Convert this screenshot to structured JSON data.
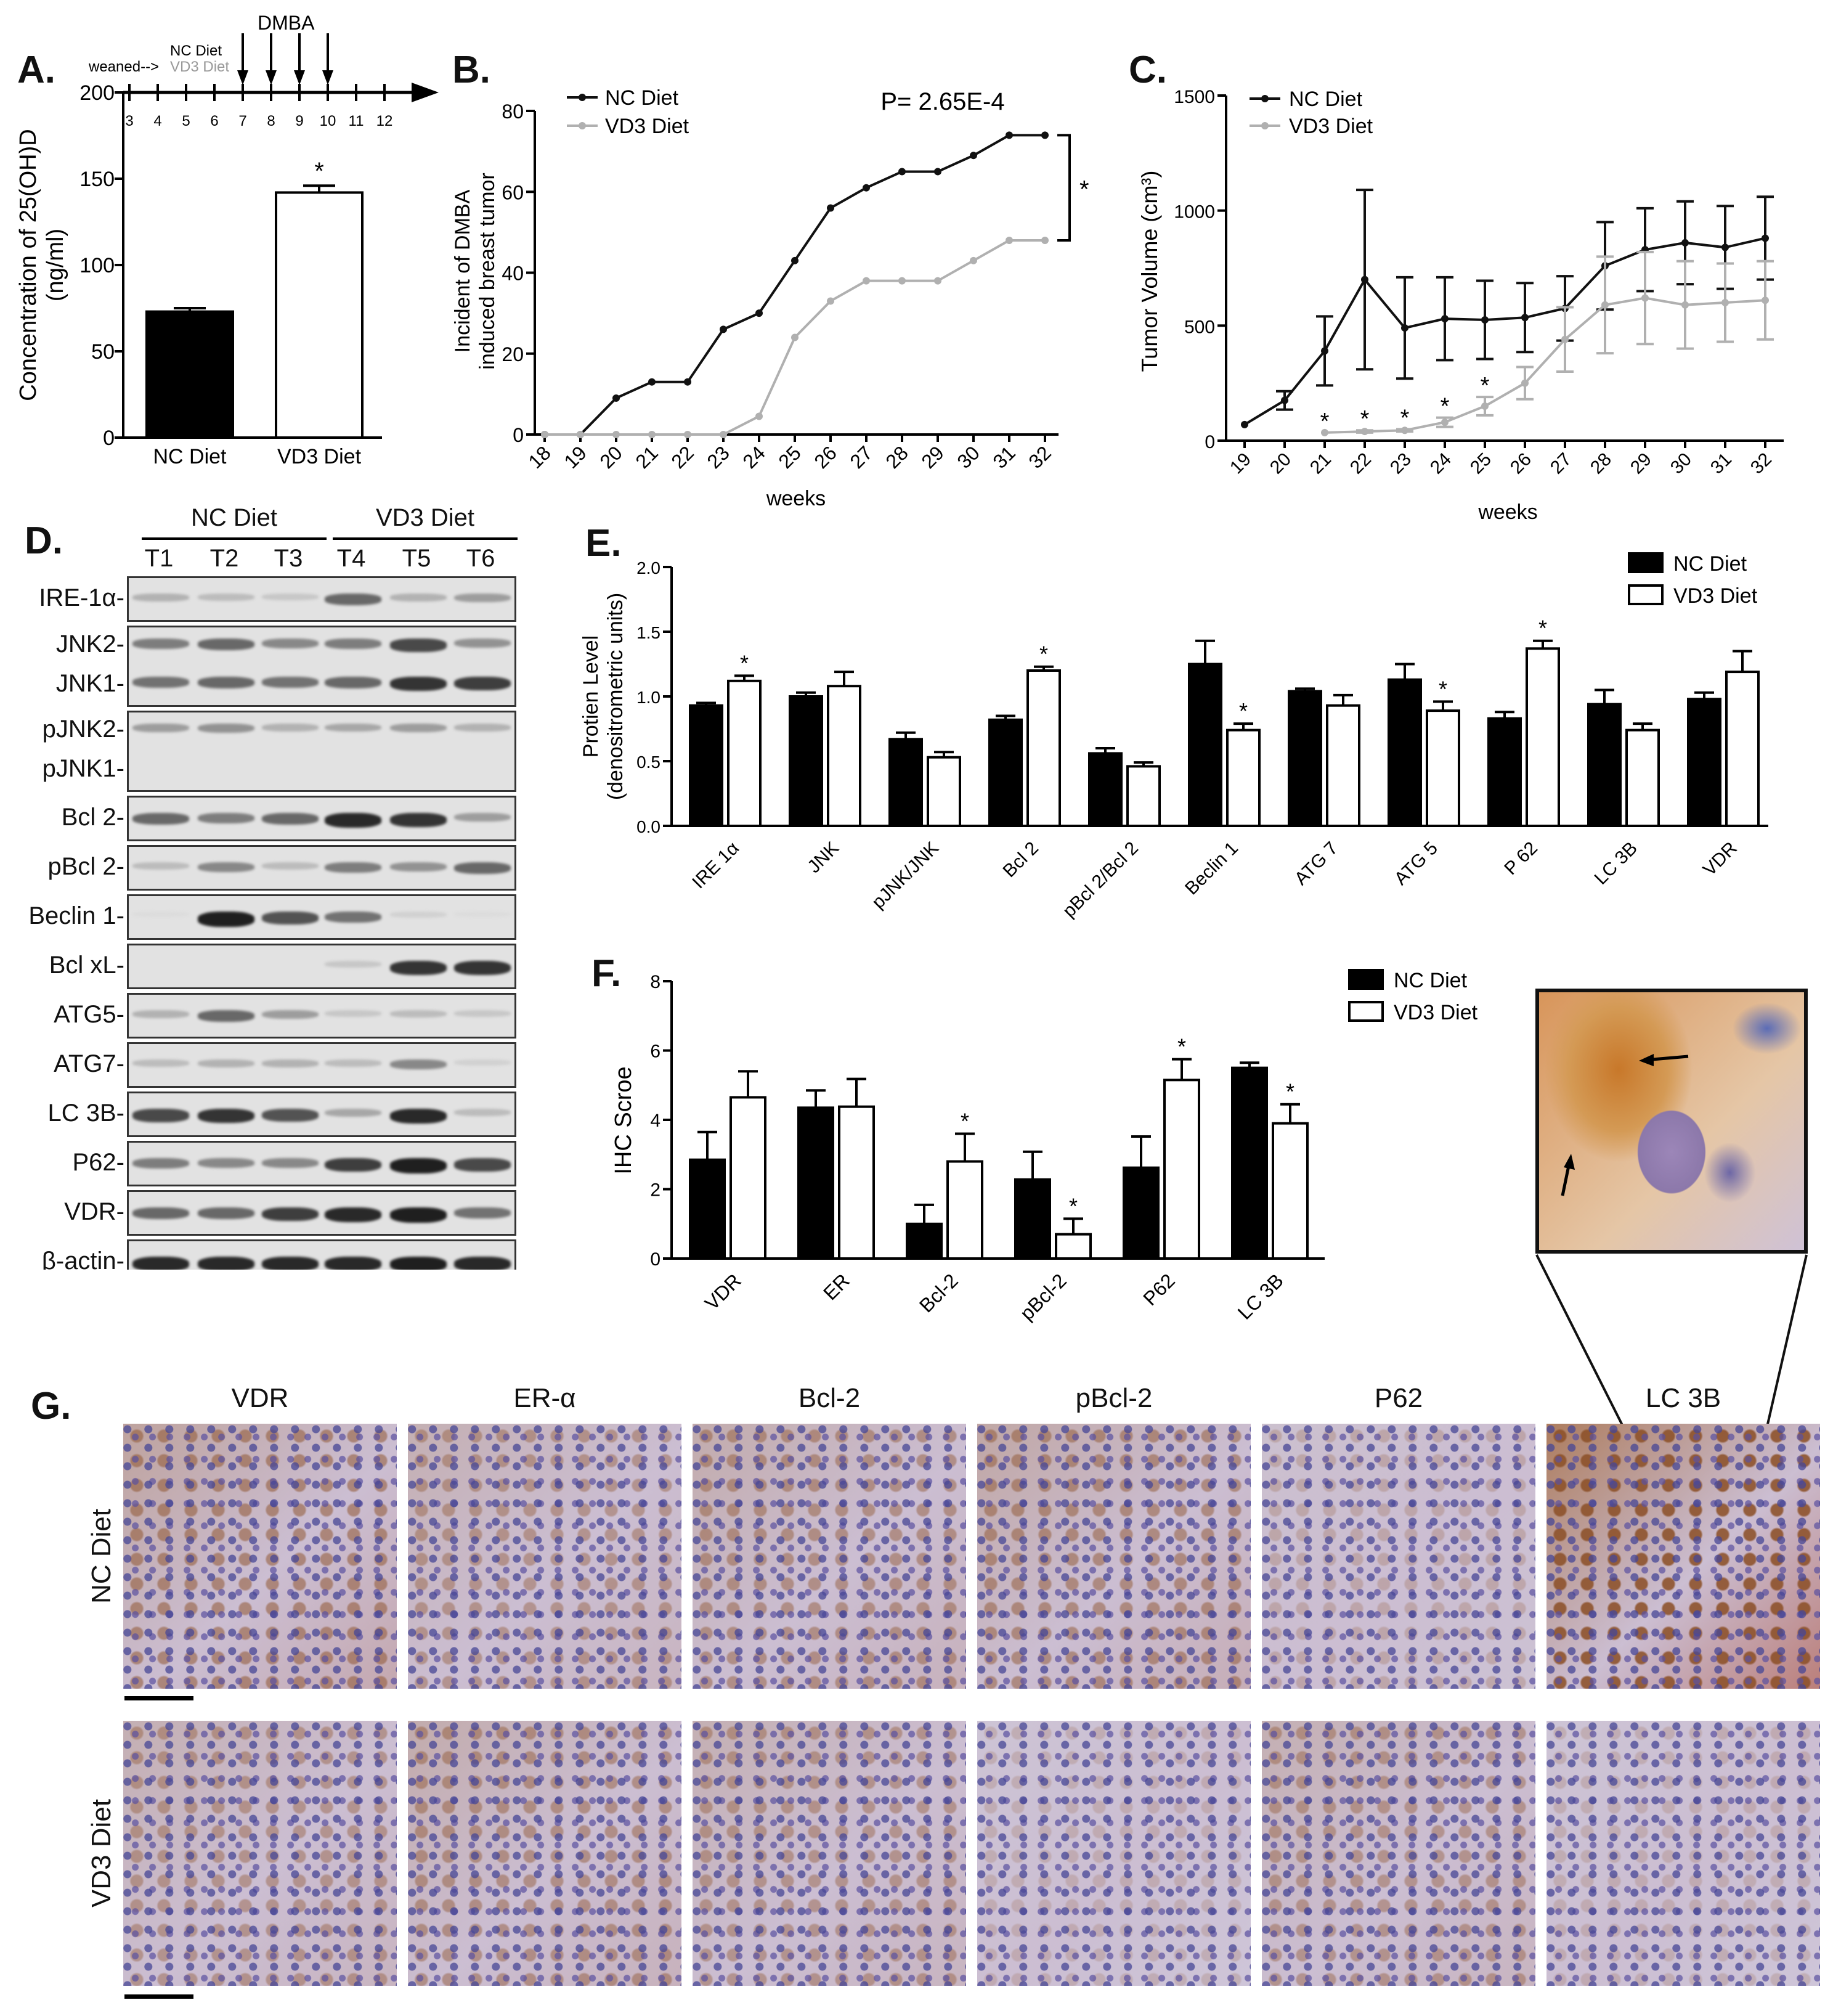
{
  "labels": {
    "A": "A.",
    "B": "B.",
    "C": "C.",
    "D": "D.",
    "E": "E.",
    "F": "F.",
    "G": "G."
  },
  "panel_a": {
    "timeline": {
      "weeks": [
        "3",
        "4",
        "5",
        "6",
        "7",
        "8",
        "9",
        "10",
        "11",
        "12"
      ],
      "weaned": "weaned-->",
      "nc_diet": "NC Diet",
      "vd3_diet": "VD3 Diet",
      "dmba": "DMBA"
    }
  },
  "panel_d": {
    "groups": [
      "NC Diet",
      "VD3 Diet"
    ],
    "lanes": [
      "T1",
      "T2",
      "T3",
      "T4",
      "T5",
      "T6"
    ],
    "rows": [
      {
        "labels": [
          "IRE-1α-"
        ],
        "bands": [
          [
            0.25,
            0.2,
            0.15,
            0.6,
            0.25,
            0.35
          ]
        ]
      },
      {
        "labels": [
          "JNK2-",
          "JNK1-"
        ],
        "bands": [
          [
            0.5,
            0.6,
            0.45,
            0.5,
            0.75,
            0.4
          ],
          [
            0.55,
            0.6,
            0.55,
            0.6,
            0.85,
            0.8
          ]
        ]
      },
      {
        "labels": [
          "pJNK2-",
          "pJNK1-"
        ],
        "bands": [
          [
            0.35,
            0.4,
            0.25,
            0.3,
            0.35,
            0.25
          ],
          [
            0,
            0,
            0,
            0,
            0,
            0
          ]
        ]
      },
      {
        "labels": [
          "Bcl 2-"
        ],
        "bands": [
          [
            0.6,
            0.5,
            0.6,
            0.9,
            0.85,
            0.35
          ]
        ]
      },
      {
        "labels": [
          "pBcl 2-"
        ],
        "bands": [
          [
            0.2,
            0.45,
            0.2,
            0.5,
            0.4,
            0.6
          ]
        ]
      },
      {
        "labels": [
          "Beclin 1-"
        ],
        "bands": [
          [
            0.05,
            0.95,
            0.7,
            0.55,
            0.1,
            0.05
          ]
        ]
      },
      {
        "labels": [
          "Bcl xL-"
        ],
        "bands": [
          [
            0,
            0,
            0,
            0.15,
            0.85,
            0.85
          ]
        ]
      },
      {
        "labels": [
          "ATG5-"
        ],
        "bands": [
          [
            0.25,
            0.6,
            0.35,
            0.15,
            0.2,
            0.15
          ]
        ]
      },
      {
        "labels": [
          "ATG7-"
        ],
        "bands": [
          [
            0.2,
            0.25,
            0.25,
            0.2,
            0.45,
            0.1
          ]
        ]
      },
      {
        "labels": [
          "LC 3B-"
        ],
        "bands": [
          [
            0.75,
            0.85,
            0.7,
            0.3,
            0.9,
            0.2
          ]
        ]
      },
      {
        "labels": [
          "P62-"
        ],
        "bands": [
          [
            0.5,
            0.45,
            0.45,
            0.8,
            0.95,
            0.75
          ]
        ]
      },
      {
        "labels": [
          "VDR-"
        ],
        "bands": [
          [
            0.6,
            0.6,
            0.8,
            0.9,
            0.95,
            0.55
          ]
        ]
      },
      {
        "labels": [
          "β-actin-"
        ],
        "bands": [
          [
            0.9,
            0.9,
            0.9,
            0.9,
            0.95,
            0.9
          ]
        ]
      }
    ]
  },
  "panel_g": {
    "columns": [
      "VDR",
      "ER-α",
      "Bcl-2",
      "pBcl-2",
      "P62",
      "LC 3B"
    ],
    "rows": [
      "NC Diet",
      "VD3 Diet"
    ],
    "brown_intensity": [
      [
        0.45,
        0.3,
        0.35,
        0.4,
        0.1,
        0.9
      ],
      [
        0.3,
        0.35,
        0.3,
        0.05,
        0.3,
        0.05
      ]
    ]
  },
  "chart_data": [
    {
      "panel": "A",
      "type": "bar",
      "categories": [
        "NC Diet",
        "VD3 Diet"
      ],
      "values": [
        73,
        142
      ],
      "errors": [
        2,
        4
      ],
      "significance": [
        "",
        "*"
      ],
      "ylabel": "Concentration of 25(OH)D (ng/ml)",
      "ylabel_lines": [
        "Concentration of 25(OH)D",
        "(ng/ml)"
      ],
      "ylim": [
        0,
        200
      ],
      "yticks": [
        0,
        50,
        100,
        150,
        200
      ],
      "colors": {
        "NC Diet": "#000000",
        "VD3 Diet": "#ffffff"
      }
    },
    {
      "panel": "B",
      "type": "line",
      "x": [
        18,
        19,
        20,
        21,
        22,
        23,
        24,
        25,
        26,
        27,
        28,
        29,
        30,
        31,
        32
      ],
      "series": [
        {
          "name": "NC Diet",
          "color": "#111111",
          "values": [
            0,
            0,
            9,
            13,
            13,
            26,
            30,
            43,
            56,
            61,
            65,
            65,
            69,
            74,
            74
          ]
        },
        {
          "name": "VD3 Diet",
          "color": "#b0b0b0",
          "values": [
            0,
            0,
            0,
            0,
            0,
            0,
            4.5,
            24,
            33,
            38,
            38,
            38,
            43,
            48,
            48
          ]
        }
      ],
      "annotation": "P= 2.65E-4",
      "bracket_star": "*",
      "xlabel": "weeks",
      "ylabel_lines": [
        "Incident of DMBA",
        "induced breast tumor"
      ],
      "ylim": [
        0,
        80
      ],
      "yticks": [
        0,
        20,
        40,
        60,
        80
      ],
      "legend": "top-left"
    },
    {
      "panel": "C",
      "type": "line",
      "x": [
        19,
        20,
        21,
        22,
        23,
        24,
        25,
        26,
        27,
        28,
        29,
        30,
        31,
        32
      ],
      "series": [
        {
          "name": "NC Diet",
          "color": "#111111",
          "values": [
            70,
            175,
            390,
            700,
            490,
            530,
            525,
            535,
            575,
            760,
            830,
            860,
            840,
            880
          ],
          "errors": [
            0,
            40,
            150,
            390,
            220,
            180,
            170,
            150,
            140,
            190,
            180,
            180,
            180,
            180
          ]
        },
        {
          "name": "VD3 Diet",
          "color": "#b0b0b0",
          "values": [
            null,
            null,
            35,
            40,
            45,
            80,
            150,
            250,
            440,
            590,
            620,
            590,
            600,
            610
          ],
          "errors": [
            null,
            null,
            0,
            5,
            5,
            20,
            40,
            70,
            140,
            210,
            200,
            190,
            170,
            170
          ]
        }
      ],
      "significance_x": [
        21,
        22,
        23,
        24,
        25
      ],
      "significance": "*",
      "xlabel": "weeks",
      "ylabel": "Tumor Volume (cm³)",
      "ylim": [
        0,
        1500
      ],
      "yticks": [
        0,
        500,
        1000,
        1500
      ],
      "legend": "top-left"
    },
    {
      "panel": "E",
      "type": "bar",
      "categories": [
        "IRE 1α",
        "JNK",
        "pJNK/JNK",
        "Bcl 2",
        "pBcl 2/Bcl 2",
        "Beclin 1",
        "ATG 7",
        "ATG 5",
        "P 62",
        "LC 3B",
        "VDR"
      ],
      "series": [
        {
          "name": "NC Diet",
          "color": "#000000",
          "values": [
            0.93,
            1.0,
            0.67,
            0.82,
            0.56,
            1.25,
            1.04,
            1.13,
            0.83,
            0.94,
            0.98
          ],
          "errors": [
            0.02,
            0.03,
            0.05,
            0.03,
            0.04,
            0.18,
            0.02,
            0.12,
            0.05,
            0.11,
            0.05
          ]
        },
        {
          "name": "VD3 Diet",
          "color": "#ffffff",
          "values": [
            1.12,
            1.08,
            0.53,
            1.2,
            0.46,
            0.74,
            0.93,
            0.89,
            1.37,
            0.74,
            1.19
          ],
          "errors": [
            0.04,
            0.11,
            0.04,
            0.03,
            0.03,
            0.05,
            0.08,
            0.07,
            0.06,
            0.05,
            0.16
          ]
        }
      ],
      "significance": [
        false,
        false,
        false,
        false,
        false,
        false,
        false,
        false,
        false,
        false,
        false
      ],
      "significance_vd3": [
        true,
        false,
        false,
        true,
        false,
        true,
        false,
        true,
        true,
        false,
        false
      ],
      "ylabel_lines": [
        "Protien Level",
        "(denositrometric units)"
      ],
      "ylim": [
        0,
        2.0
      ],
      "yticks": [
        "0.0",
        "0.5",
        "1.0",
        "1.5",
        "2.0"
      ],
      "legend": "top-right"
    },
    {
      "panel": "F",
      "type": "bar",
      "categories": [
        "VDR",
        "ER",
        "Bcl-2",
        "pBcl-2",
        "P62",
        "LC 3B"
      ],
      "series": [
        {
          "name": "NC Diet",
          "color": "#000000",
          "values": [
            2.85,
            4.35,
            1.0,
            2.28,
            2.62,
            5.5
          ],
          "errors": [
            0.8,
            0.5,
            0.55,
            0.8,
            0.9,
            0.15
          ]
        },
        {
          "name": "VD3 Diet",
          "color": "#ffffff",
          "values": [
            4.65,
            4.38,
            2.8,
            0.7,
            5.15,
            3.9
          ],
          "errors": [
            0.75,
            0.8,
            0.8,
            0.45,
            0.6,
            0.55
          ]
        }
      ],
      "significance_vd3": [
        false,
        false,
        true,
        true,
        true,
        true
      ],
      "ylabel": "IHC Scroe",
      "ylim": [
        0,
        8
      ],
      "yticks": [
        0,
        2,
        4,
        6,
        8
      ],
      "legend": "top-right"
    }
  ]
}
